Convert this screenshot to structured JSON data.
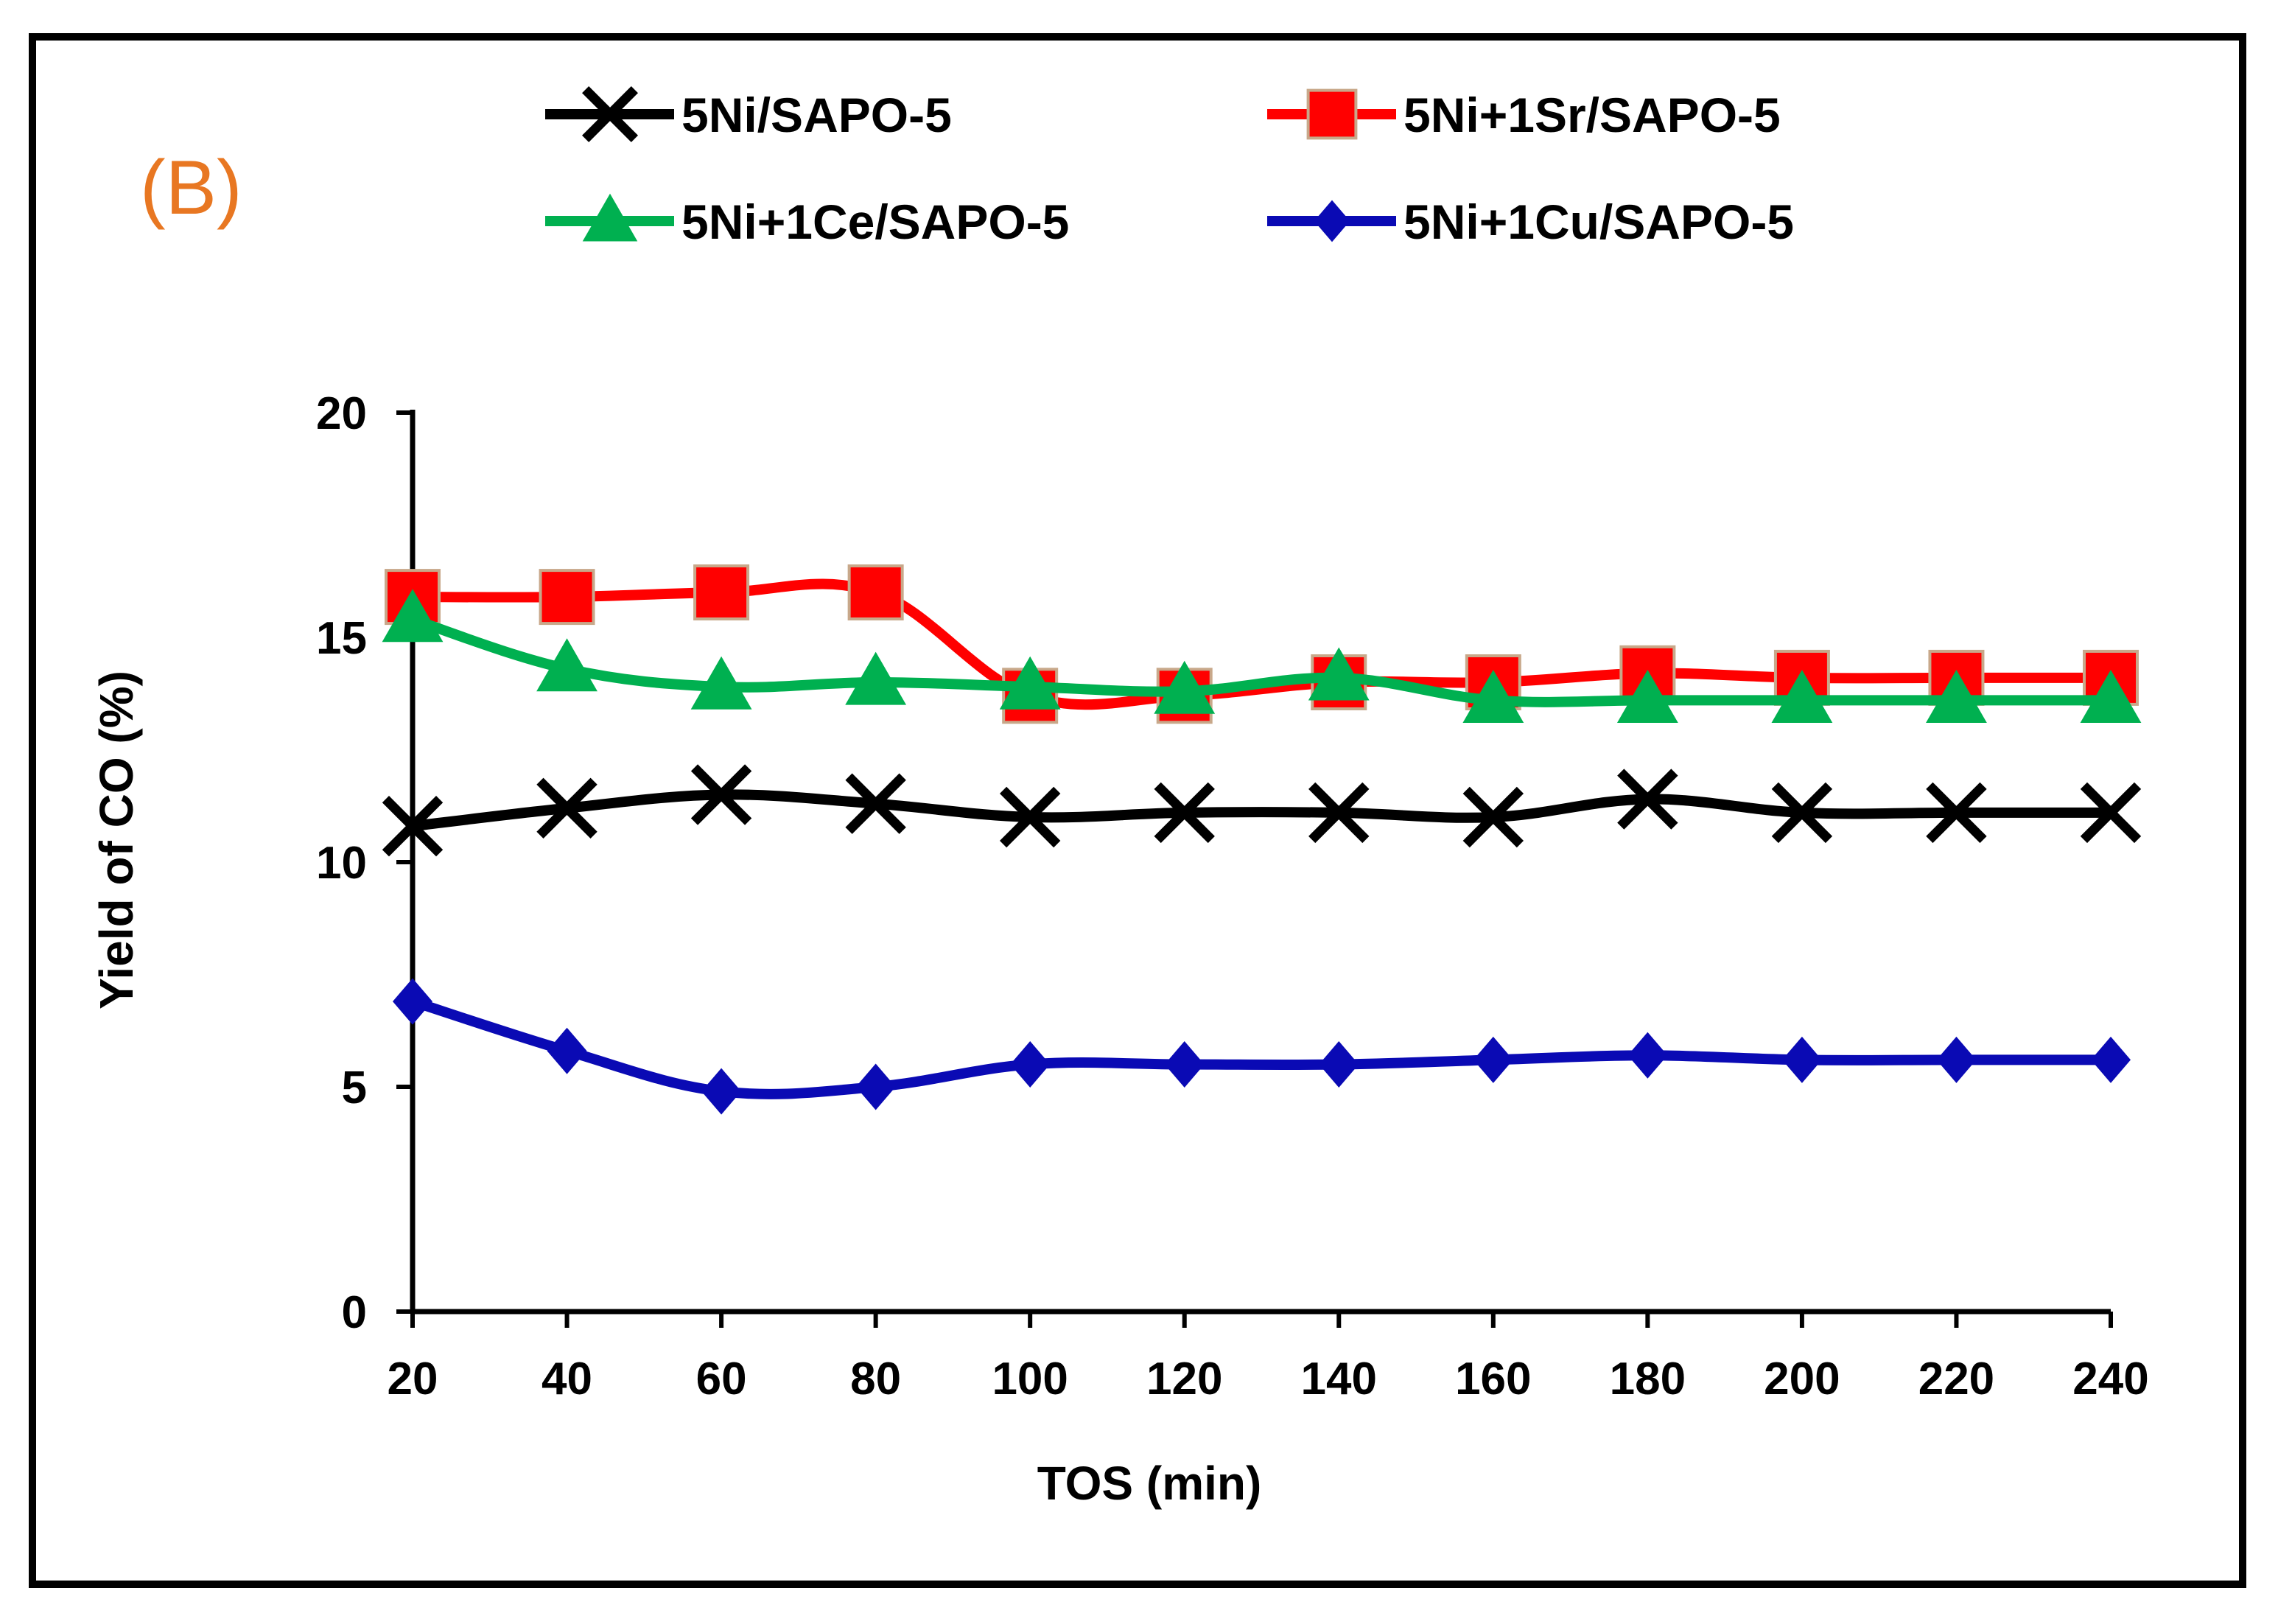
{
  "panel_label": "(B)",
  "colors": {
    "frame": "#000000",
    "panel_label": "#E87722",
    "axis": "#000000"
  },
  "chart_data": {
    "type": "line",
    "title": "",
    "xlabel": "TOS (min)",
    "ylabel": "Yield of CO (%)",
    "x": [
      20,
      40,
      60,
      80,
      100,
      120,
      140,
      160,
      180,
      200,
      220,
      240
    ],
    "xticks": [
      "20",
      "40",
      "60",
      "80",
      "100",
      "120",
      "140",
      "160",
      "180",
      "200",
      "220",
      "240"
    ],
    "yticks": [
      "0",
      "5",
      "10",
      "15",
      "20"
    ],
    "ylim": [
      0,
      20
    ],
    "grid": false,
    "legend_position": "top",
    "series": [
      {
        "name": "5Ni/SAPO-5",
        "marker": "x",
        "color": "#000000",
        "values": [
          10.8,
          11.2,
          11.5,
          11.3,
          11.0,
          11.1,
          11.1,
          11.0,
          11.4,
          11.1,
          11.1,
          11.1
        ]
      },
      {
        "name": "5Ni+1Sr/SAPO-5",
        "marker": "square",
        "color": "#FF0000",
        "values": [
          15.9,
          15.9,
          16.0,
          16.0,
          13.7,
          13.7,
          14.0,
          14.0,
          14.2,
          14.1,
          14.1,
          14.1
        ]
      },
      {
        "name": "5Ni+1Ce/SAPO-5",
        "marker": "triangle",
        "color": "#00B050",
        "values": [
          15.4,
          14.3,
          13.9,
          14.0,
          13.9,
          13.8,
          14.1,
          13.6,
          13.6,
          13.6,
          13.6,
          13.6
        ]
      },
      {
        "name": "5Ni+1Cu/SAPO-5",
        "marker": "diamond",
        "color": "#0A0AB4",
        "values": [
          6.9,
          5.8,
          4.9,
          5.0,
          5.5,
          5.5,
          5.5,
          5.6,
          5.7,
          5.6,
          5.6,
          5.6
        ]
      }
    ]
  }
}
